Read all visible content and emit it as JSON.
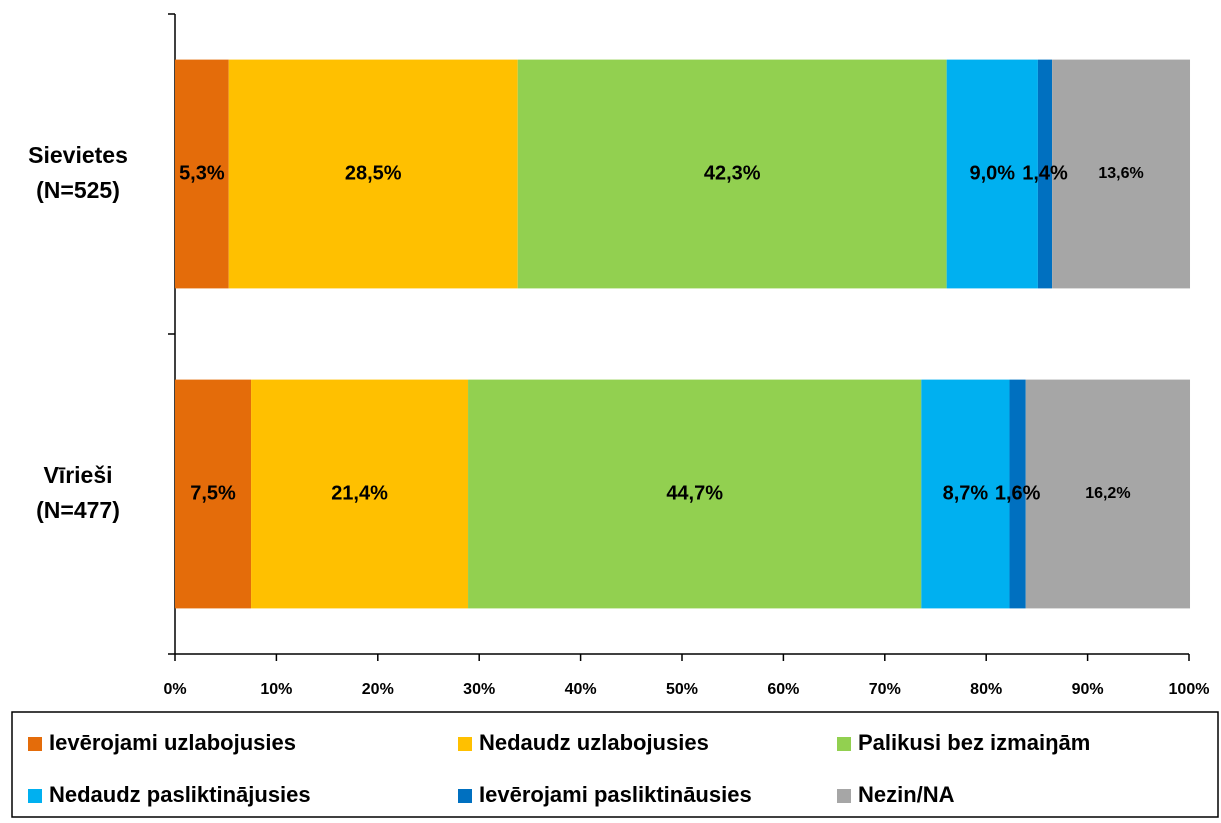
{
  "chart_data": {
    "type": "stacked-barh",
    "categories": [
      [
        "Sievietes",
        "(N=525)"
      ],
      [
        "Vīrieši",
        "(N=477)"
      ]
    ],
    "series": [
      {
        "name": "Ievērojami uzlabojusies",
        "color": "#e46c0a",
        "values": [
          5.3,
          7.5
        ],
        "value_labels": [
          "5,3%",
          "7,5%"
        ]
      },
      {
        "name": "Nedaudz uzlabojusies",
        "color": "#ffc000",
        "values": [
          28.5,
          21.4
        ],
        "value_labels": [
          "28,5%",
          "21,4%"
        ]
      },
      {
        "name": "Palikusi bez izmaiŋām",
        "color": "#92d050",
        "values": [
          42.3,
          44.7
        ],
        "value_labels": [
          "42,3%",
          "44,7%"
        ]
      },
      {
        "name": "Nedaudz pasliktinājusies",
        "color": "#00b0f0",
        "values": [
          9.0,
          8.7
        ],
        "value_labels": [
          "9,0%",
          "8,7%"
        ]
      },
      {
        "name": "Ievērojami pasliktināusies",
        "color": "#0070c0",
        "values": [
          1.4,
          1.6
        ],
        "value_labels": [
          "1,4%",
          "1,6%"
        ]
      },
      {
        "name": "Nezin/NA",
        "color": "#a6a6a6",
        "values": [
          13.6,
          16.2
        ],
        "value_labels": [
          "13,6%",
          "16,2%"
        ]
      }
    ],
    "xlim": [
      0,
      100
    ],
    "xticks": [
      {
        "value": 0,
        "label": "0%"
      },
      {
        "value": 10,
        "label": "10%"
      },
      {
        "value": 20,
        "label": "20%"
      },
      {
        "value": 30,
        "label": "30%"
      },
      {
        "value": 40,
        "label": "40%"
      },
      {
        "value": 50,
        "label": "50%"
      },
      {
        "value": 60,
        "label": "60%"
      },
      {
        "value": 70,
        "label": "70%"
      },
      {
        "value": 80,
        "label": "80%"
      },
      {
        "value": 90,
        "label": "90%"
      },
      {
        "value": 100,
        "label": "100%"
      }
    ],
    "legend": "bottom"
  }
}
